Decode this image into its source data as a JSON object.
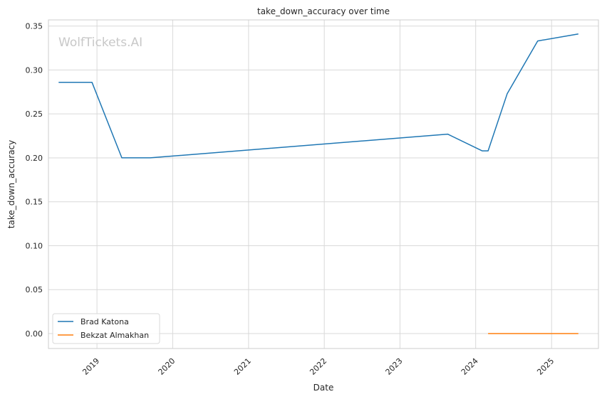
{
  "chart_data": {
    "type": "line",
    "title": "take_down_accuracy over time",
    "xlabel": "Date",
    "ylabel": "take_down_accuracy",
    "watermark": "WolfTickets.AI",
    "x_ticks": [
      "2019",
      "2020",
      "2021",
      "2022",
      "2023",
      "2024",
      "2025"
    ],
    "y_ticks": [
      "0.00",
      "0.05",
      "0.10",
      "0.15",
      "0.20",
      "0.25",
      "0.30",
      "0.35"
    ],
    "xlim": [
      "2018-05-12",
      "2025-08-15"
    ],
    "ylim": [
      -0.017,
      0.357
    ],
    "grid": true,
    "legend_position": "lower-left",
    "series": [
      {
        "name": "Brad Katona",
        "color": "#1f77b4",
        "points": [
          {
            "x": "2018-06-30",
            "y": 0.286
          },
          {
            "x": "2018-12-08",
            "y": 0.286
          },
          {
            "x": "2019-05-01",
            "y": 0.2
          },
          {
            "x": "2019-09-15",
            "y": 0.2
          },
          {
            "x": "2023-08-19",
            "y": 0.227
          },
          {
            "x": "2024-02-01",
            "y": 0.208
          },
          {
            "x": "2024-03-01",
            "y": 0.208
          },
          {
            "x": "2024-06-01",
            "y": 0.273
          },
          {
            "x": "2024-10-26",
            "y": 0.333
          },
          {
            "x": "2025-05-10",
            "y": 0.341
          }
        ]
      },
      {
        "name": "Bekzat Almakhan",
        "color": "#ff7f0e",
        "points": [
          {
            "x": "2024-03-01",
            "y": 0.0
          },
          {
            "x": "2025-05-10",
            "y": 0.0
          }
        ]
      }
    ]
  }
}
